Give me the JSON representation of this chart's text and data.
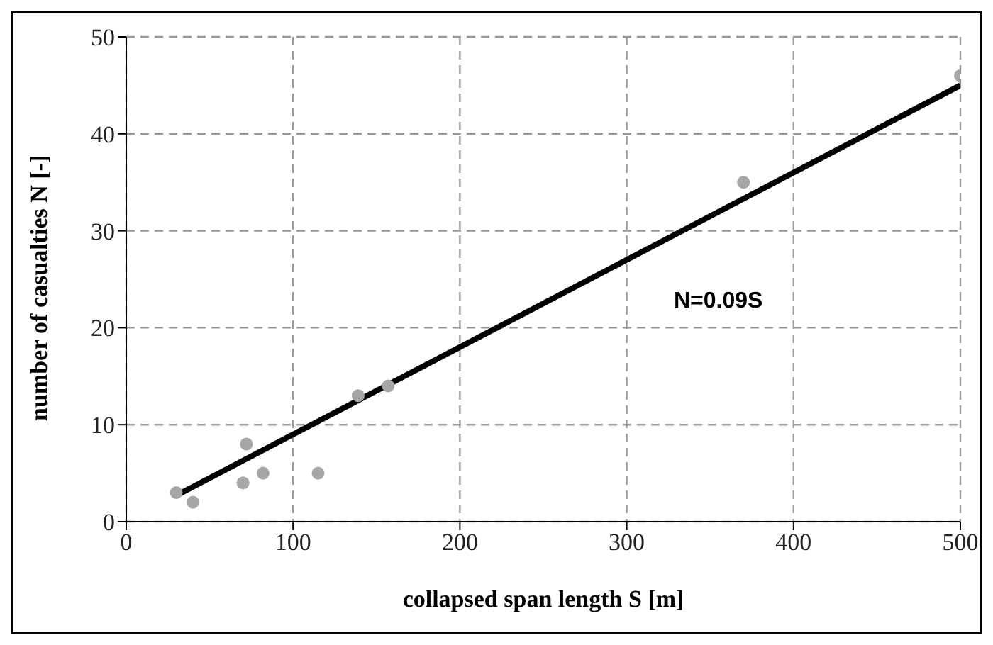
{
  "chart_data": {
    "type": "scatter",
    "xlabel": "collapsed span length S [m]",
    "ylabel": "number of casualties N [-]",
    "x": [
      30,
      40,
      70,
      72,
      82,
      115,
      139,
      157,
      370,
      500
    ],
    "series": [
      {
        "color": "#a6a6a6",
        "marker": "circle",
        "values": [
          3,
          2,
          4,
          8,
          5,
          5,
          13,
          14,
          35,
          46
        ]
      },
      {
        "type": "line",
        "color": "#000000",
        "marker": "none",
        "x": [
          30,
          500
        ],
        "values": [
          2.7,
          45
        ]
      }
    ],
    "xlim": [
      0,
      500
    ],
    "xticks": [
      0,
      100,
      200,
      300,
      400,
      500
    ],
    "ylim": [
      0,
      50
    ],
    "yticks": [
      0,
      10,
      20,
      30,
      40,
      50
    ],
    "grid": true,
    "line_style": "solid",
    "annotations": [
      "N=0.09S"
    ]
  }
}
